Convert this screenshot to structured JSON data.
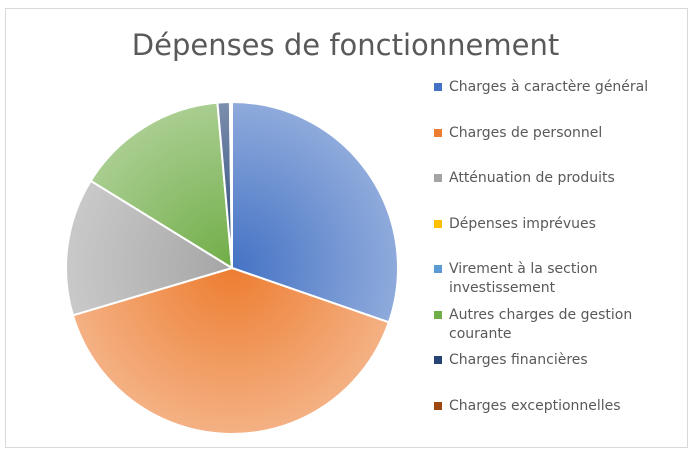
{
  "chart_data": {
    "type": "pie",
    "title": "Dépenses de fonctionnement",
    "categories": [
      "Charges à caractère général",
      "Charges de personnel",
      "Atténuation de produits",
      "Dépenses imprévues",
      "Virement à la section investissement",
      "Autres charges de gestion courante",
      "Charges financières",
      "Charges exceptionnelles"
    ],
    "values": [
      30.3,
      40.1,
      13.4,
      0,
      0,
      14.8,
      1.2,
      0.2
    ],
    "colors": [
      "#4472c4",
      "#ed7d31",
      "#a5a5a5",
      "#ffc000",
      "#5b9bd5",
      "#70ad47",
      "#264478",
      "#9e480e"
    ],
    "legend": "right"
  }
}
